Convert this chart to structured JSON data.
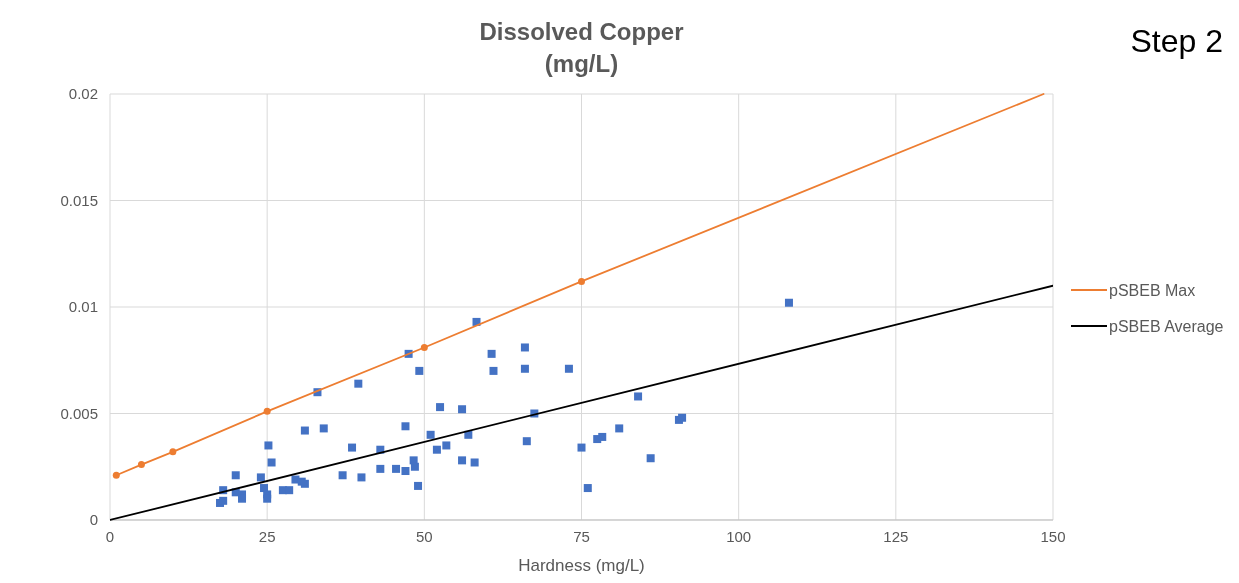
{
  "chart_data": {
    "type": "scatter",
    "title": "Dissolved Copper\n(mg/L)",
    "xlabel": "Hardness (mg/L)",
    "annotations": [
      "Step 2"
    ],
    "xlim": [
      0,
      150
    ],
    "xticks": [
      0,
      25,
      50,
      75,
      100,
      125,
      150
    ],
    "ylim": [
      0,
      0.02
    ],
    "yticks": [
      0,
      0.005,
      0.01,
      0.015,
      0.02
    ],
    "grid": true,
    "legend": "right",
    "series": [
      {
        "color": "#4472c4",
        "marker": "square",
        "x": [
          17.5,
          18,
          18,
          20,
          20,
          21,
          21,
          24,
          24.5,
          25,
          25,
          25.2,
          25.7,
          27.5,
          28.5,
          29.5,
          30.5,
          31,
          31,
          33,
          34,
          37,
          38.5,
          39.5,
          40,
          43,
          43,
          45.5,
          47,
          47,
          47.5,
          48.3,
          48.5,
          49,
          49.2,
          51,
          52,
          52.5,
          53.5,
          56,
          56,
          57,
          58,
          58.3,
          60.7,
          61,
          66,
          66,
          66.3,
          67.5,
          73,
          75,
          76,
          77.5,
          78.3,
          81,
          84,
          86,
          90.5,
          91,
          108
        ],
        "values": [
          0.0008,
          0.0009,
          0.0014,
          0.0021,
          0.0013,
          0.0012,
          0.001,
          0.002,
          0.0015,
          0.0012,
          0.001,
          0.0035,
          0.0027,
          0.0014,
          0.0014,
          0.0019,
          0.0018,
          0.0042,
          0.0017,
          0.006,
          0.0043,
          0.0021,
          0.0034,
          0.0064,
          0.002,
          0.0024,
          0.0033,
          0.0024,
          0.0044,
          0.0023,
          0.0078,
          0.0028,
          0.0025,
          0.0016,
          0.007,
          0.004,
          0.0033,
          0.0053,
          0.0035,
          0.0052,
          0.0028,
          0.004,
          0.0027,
          0.0093,
          0.0078,
          0.007,
          0.0081,
          0.0071,
          0.0037,
          0.005,
          0.0071,
          0.0034,
          0.0015,
          0.0038,
          0.0039,
          0.0043,
          0.0058,
          0.0029,
          0.0047,
          0.0048,
          0.0102
        ]
      },
      {
        "type": "line",
        "name": "pSBEB Max",
        "color": "#ed7d31",
        "marker": "circle",
        "x": [
          1,
          5,
          10,
          25,
          50,
          75
        ],
        "values": [
          0.0021,
          0.0026,
          0.0032,
          0.0051,
          0.0081,
          0.0112
        ]
      },
      {
        "type": "line",
        "color": "#ed7d31",
        "marker": "none",
        "x": [
          75,
          148.5
        ],
        "values": [
          0.0112,
          0.02
        ]
      },
      {
        "type": "line",
        "name": "pSBEB Average",
        "color": "#000000",
        "marker": "none",
        "x": [
          0,
          150
        ],
        "values": [
          0,
          0.011
        ]
      }
    ]
  }
}
